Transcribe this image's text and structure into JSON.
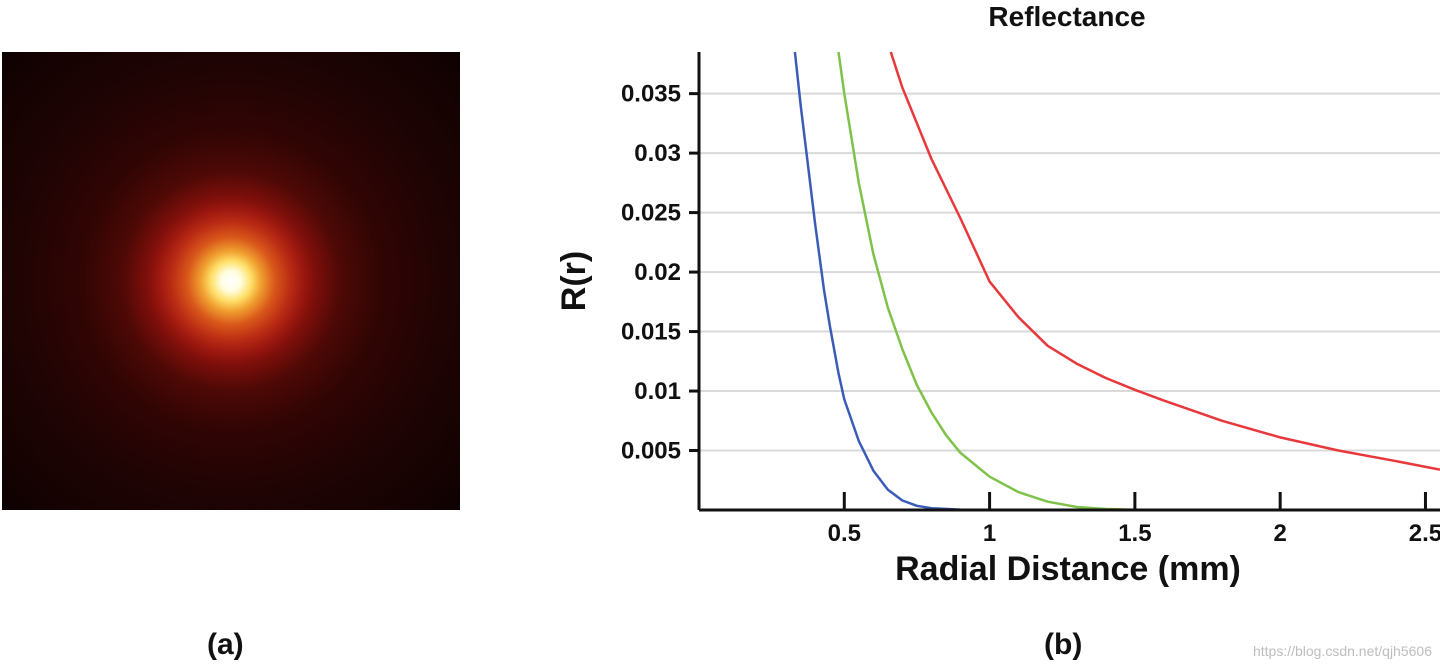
{
  "panel_labels": {
    "a": "(a)",
    "b": "(b)"
  },
  "watermark": "https://blog.csdn.net/qjh5606",
  "image_a": {
    "description_colors": [
      "#ffffff",
      "#ffe06a",
      "#d8571a",
      "#9c1810",
      "#200404"
    ]
  },
  "chart_data": {
    "type": "line",
    "title": "Reflectance",
    "xlabel": "Radial Distance (mm)",
    "ylabel": "R(r)",
    "xlim": [
      0,
      2.55
    ],
    "ylim": [
      0,
      0.0385
    ],
    "xticks": [
      0.5,
      1,
      1.5,
      2,
      2.5
    ],
    "xtick_labels": [
      "0.5",
      "1",
      "1.5",
      "2",
      "2.5"
    ],
    "yticks": [
      0.005,
      0.01,
      0.015,
      0.02,
      0.025,
      0.03,
      0.035
    ],
    "ytick_labels": [
      "0.005",
      "0.01",
      "0.015",
      "0.02",
      "0.025",
      "0.03",
      "0.035"
    ],
    "grid": true,
    "series": [
      {
        "color": "#3b5bb8",
        "x": [
          0.33,
          0.35,
          0.38,
          0.4,
          0.43,
          0.45,
          0.48,
          0.5,
          0.55,
          0.6,
          0.65,
          0.7,
          0.75,
          0.8,
          0.9,
          1.0,
          1.1
        ],
        "y": [
          0.0385,
          0.034,
          0.028,
          0.024,
          0.0185,
          0.0155,
          0.0115,
          0.0093,
          0.0058,
          0.0033,
          0.0017,
          0.0008,
          0.00035,
          0.00015,
          3e-05,
          0.0,
          0.0
        ]
      },
      {
        "color": "#7ec24a",
        "x": [
          0.48,
          0.5,
          0.55,
          0.6,
          0.65,
          0.7,
          0.75,
          0.8,
          0.85,
          0.9,
          1.0,
          1.1,
          1.2,
          1.3,
          1.4,
          1.5,
          1.7,
          1.9
        ],
        "y": [
          0.0385,
          0.035,
          0.0275,
          0.0215,
          0.017,
          0.0135,
          0.0105,
          0.0082,
          0.0063,
          0.0048,
          0.0028,
          0.0015,
          0.0007,
          0.00025,
          8e-05,
          2e-05,
          0.0,
          0.0
        ]
      },
      {
        "color": "#e8383b",
        "x": [
          0.66,
          0.7,
          0.8,
          0.9,
          1.0,
          1.1,
          1.2,
          1.3,
          1.4,
          1.5,
          1.6,
          1.8,
          2.0,
          2.2,
          2.4,
          2.55
        ],
        "y": [
          0.0385,
          0.0355,
          0.0295,
          0.0245,
          0.0192,
          0.0162,
          0.0138,
          0.0123,
          0.0111,
          0.0101,
          0.0092,
          0.0075,
          0.0061,
          0.005,
          0.0041,
          0.0034
        ]
      }
    ]
  }
}
